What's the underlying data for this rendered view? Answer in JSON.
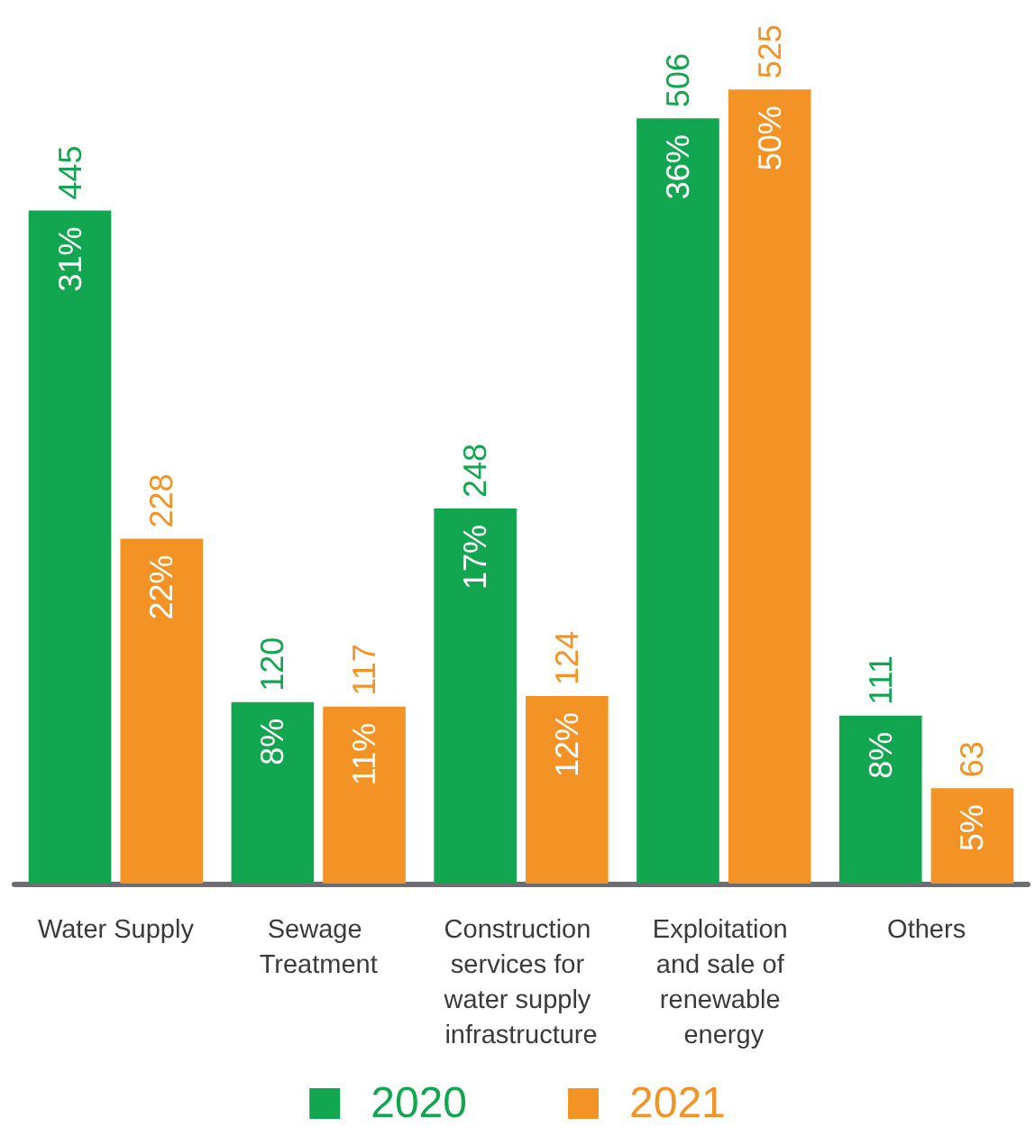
{
  "chart_data": {
    "type": "bar",
    "categories": [
      "Water Supply",
      "Sewage Treatment",
      "Construction services for water supply infrastructure",
      "Exploitation and sale of renewable energy",
      "Others"
    ],
    "series": [
      {
        "name": "2020",
        "color": "#12a650",
        "values": [
          445,
          120,
          248,
          506,
          111
        ]
      },
      {
        "name": "2021",
        "color": "#f39325",
        "values": [
          228,
          117,
          124,
          525,
          63
        ]
      }
    ],
    "annotations": [
      {
        "text": "31%",
        "x": "Water Supply",
        "y": 445
      },
      {
        "text": "8%",
        "x": "Sewage Treatment",
        "y": 120
      },
      {
        "text": "17%",
        "x": "Construction services for water supply infrastructure",
        "y": 248
      },
      {
        "text": "36%",
        "x": "Exploitation and sale of renewable energy",
        "y": 506
      },
      {
        "text": "8%",
        "x": "Others",
        "y": 111
      },
      {
        "text": "22%",
        "x": "Water Supply",
        "y": 228
      },
      {
        "text": "11%",
        "x": "Sewage Treatment",
        "y": 117
      },
      {
        "text": "12%",
        "x": "Construction services for water supply infrastructure",
        "y": 124
      },
      {
        "text": "50%",
        "x": "Exploitation and sale of renewable energy",
        "y": 525
      },
      {
        "text": "5%",
        "x": "Others",
        "y": 63
      }
    ],
    "data_labels": true,
    "legend": "bottom"
  }
}
